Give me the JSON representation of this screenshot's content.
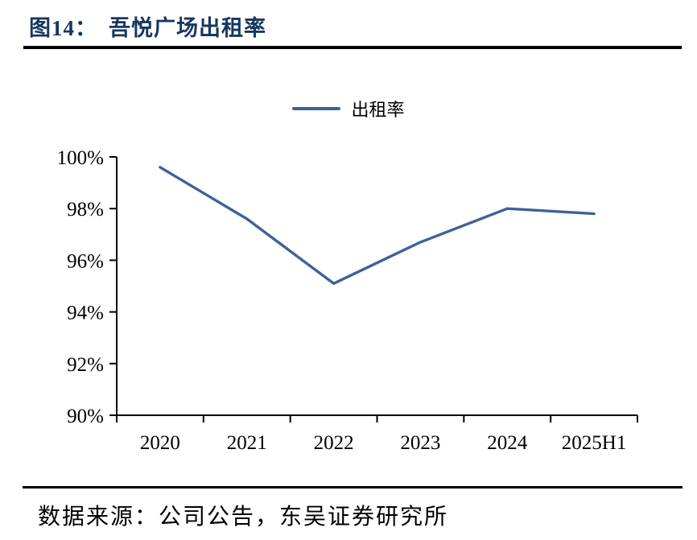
{
  "header": {
    "figure_label": "图14：",
    "title": "吾悦广场出租率"
  },
  "legend": {
    "label": "出租率"
  },
  "footer": {
    "source": "数据来源：公司公告，东吴证券研究所"
  },
  "colors": {
    "title_text": "#17375E",
    "series_line": "#3E6298",
    "axis": "#000000",
    "divider": "#000000"
  },
  "chart_data": {
    "type": "line",
    "title": "吾悦广场出租率",
    "categories": [
      "2020",
      "2021",
      "2022",
      "2023",
      "2024",
      "2025H1"
    ],
    "series": [
      {
        "name": "出租率",
        "values": [
          99.6,
          97.6,
          95.1,
          96.7,
          98.0,
          97.8
        ]
      }
    ],
    "xlabel": "",
    "ylabel": "",
    "ylim": [
      90,
      100
    ],
    "ytick_step": 2,
    "ytick_labels": [
      "90%",
      "92%",
      "94%",
      "96%",
      "98%",
      "100%"
    ],
    "legend_entries": [
      "出租率"
    ],
    "legend_position": "top-center",
    "grid": false
  }
}
